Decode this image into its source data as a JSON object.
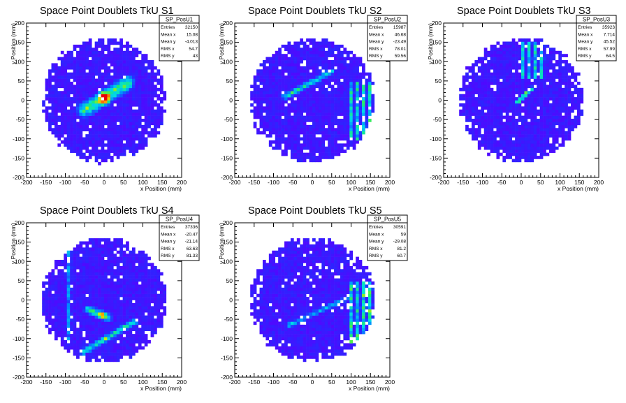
{
  "chart_data": [
    {
      "type": "heatmap",
      "title": "Space Point Doublets TkU S1",
      "xlabel": "x Position (mm)",
      "ylabel": "y Position (mm)",
      "xlim": [
        -200,
        200
      ],
      "ylim": [
        -200,
        200
      ],
      "xticks": [
        -200,
        -150,
        -100,
        -50,
        0,
        50,
        100,
        150,
        200
      ],
      "yticks": [
        -200,
        -150,
        -100,
        -50,
        0,
        50,
        100,
        150,
        200
      ],
      "region_radius": 160,
      "stats": {
        "name": "SP_PosU1",
        "rows": [
          {
            "label": "Entries",
            "value": "32150"
          },
          {
            "label": "Mean x",
            "value": "15.08"
          },
          {
            "label": "Mean y",
            "value": "-4.013"
          },
          {
            "label": "RMS x",
            "value": "54.7"
          },
          {
            "label": "RMS y",
            "value": "43"
          }
        ]
      },
      "features": {
        "bands": [
          {
            "x1": -50,
            "y1": -25,
            "x2": 60,
            "y2": 45,
            "width": 24,
            "intensity": 0.65
          }
        ],
        "blobs": [
          {
            "x": 0,
            "y": 5,
            "r": 22,
            "intensity": 0.95
          }
        ],
        "stripes": []
      }
    },
    {
      "type": "heatmap",
      "title": "Space Point Doublets TkU S2",
      "xlabel": "x Position (mm)",
      "ylabel": "y Position (mm)",
      "xlim": [
        -200,
        200
      ],
      "ylim": [
        -200,
        200
      ],
      "xticks": [
        -200,
        -150,
        -100,
        -50,
        0,
        50,
        100,
        150,
        200
      ],
      "yticks": [
        -200,
        -150,
        -100,
        -50,
        0,
        50,
        100,
        150,
        200
      ],
      "region_radius": 160,
      "stats": {
        "name": "SP_PosU2",
        "rows": [
          {
            "label": "Entries",
            "value": "15987"
          },
          {
            "label": "Mean x",
            "value": "46.68"
          },
          {
            "label": "Mean y",
            "value": "-23.49"
          },
          {
            "label": "RMS x",
            "value": "78.01"
          },
          {
            "label": "RMS y",
            "value": "59.56"
          }
        ]
      },
      "features": {
        "bands": [
          {
            "x1": -70,
            "y1": 10,
            "x2": 50,
            "y2": 75,
            "width": 10,
            "intensity": 0.55
          }
        ],
        "blobs": [],
        "stripes": [
          {
            "x1": 95,
            "x2": 160,
            "y1": -105,
            "y2": 50,
            "intensity": 0.5
          }
        ]
      }
    },
    {
      "type": "heatmap",
      "title": "Space Point Doublets TkU S3",
      "xlabel": "x Position (mm)",
      "ylabel": "y Position (mm)",
      "xlim": [
        -200,
        200
      ],
      "ylim": [
        -200,
        200
      ],
      "xticks": [
        -200,
        -150,
        -100,
        -50,
        0,
        50,
        100,
        150,
        200
      ],
      "yticks": [
        -200,
        -150,
        -100,
        -50,
        0,
        50,
        100,
        150,
        200
      ],
      "region_radius": 160,
      "stats": {
        "name": "SP_PosU3",
        "rows": [
          {
            "label": "Entries",
            "value": "35923"
          },
          {
            "label": "Mean x",
            "value": "7.714"
          },
          {
            "label": "Mean y",
            "value": "45.52"
          },
          {
            "label": "RMS x",
            "value": "57.99"
          },
          {
            "label": "RMS y",
            "value": "64.5"
          }
        ]
      },
      "features": {
        "bands": [
          {
            "x1": -10,
            "y1": -5,
            "x2": 25,
            "y2": 30,
            "width": 8,
            "intensity": 0.8
          }
        ],
        "blobs": [],
        "stripes": [
          {
            "x1": 0,
            "x2": 60,
            "y1": 60,
            "y2": 150,
            "intensity": 0.45
          }
        ]
      }
    },
    {
      "type": "heatmap",
      "title": "Space Point Doublets TkU S4",
      "xlabel": "x Position (mm)",
      "ylabel": "y Position (mm)",
      "xlim": [
        -200,
        200
      ],
      "ylim": [
        -200,
        200
      ],
      "xticks": [
        -200,
        -150,
        -100,
        -50,
        0,
        50,
        100,
        150,
        200
      ],
      "yticks": [
        -200,
        -150,
        -100,
        -50,
        0,
        50,
        100,
        150,
        200
      ],
      "region_radius": 160,
      "stats": {
        "name": "SP_PosU4",
        "rows": [
          {
            "label": "Entries",
            "value": "37336"
          },
          {
            "label": "Mean x",
            "value": "-20.47"
          },
          {
            "label": "Mean y",
            "value": "-21.14"
          },
          {
            "label": "RMS x",
            "value": "63.63"
          },
          {
            "label": "RMS y",
            "value": "81.33"
          }
        ]
      },
      "features": {
        "bands": [
          {
            "x1": -55,
            "y1": -135,
            "x2": 80,
            "y2": -55,
            "width": 10,
            "intensity": 0.6
          },
          {
            "x1": -40,
            "y1": -25,
            "x2": 10,
            "y2": -45,
            "width": 14,
            "intensity": 0.6
          }
        ],
        "blobs": [
          {
            "x": -5,
            "y": -40,
            "r": 12,
            "intensity": 0.55
          }
        ],
        "stripes": [
          {
            "x1": -95,
            "x2": -80,
            "y1": -100,
            "y2": 150,
            "intensity": 0.3
          }
        ]
      }
    },
    {
      "type": "heatmap",
      "title": "Space Point Doublets TkU S5",
      "xlabel": "x Position (mm)",
      "ylabel": "y Position (mm)",
      "xlim": [
        -200,
        200
      ],
      "ylim": [
        -200,
        200
      ],
      "xticks": [
        -200,
        -150,
        -100,
        -50,
        0,
        50,
        100,
        150,
        200
      ],
      "yticks": [
        -200,
        -150,
        -100,
        -50,
        0,
        50,
        100,
        150,
        200
      ],
      "region_radius": 160,
      "stats": {
        "name": "SP_PosU5",
        "rows": [
          {
            "label": "Entries",
            "value": "30591"
          },
          {
            "label": "Mean x",
            "value": "59"
          },
          {
            "label": "Mean y",
            "value": "-29.08"
          },
          {
            "label": "RMS x",
            "value": "81.2"
          },
          {
            "label": "RMS y",
            "value": "60.7"
          }
        ]
      },
      "features": {
        "bands": [
          {
            "x1": -60,
            "y1": -65,
            "x2": 90,
            "y2": 5,
            "width": 8,
            "intensity": 0.4
          }
        ],
        "blobs": [],
        "stripes": [
          {
            "x1": 100,
            "x2": 160,
            "y1": -110,
            "y2": 45,
            "intensity": 0.55
          }
        ]
      }
    }
  ]
}
